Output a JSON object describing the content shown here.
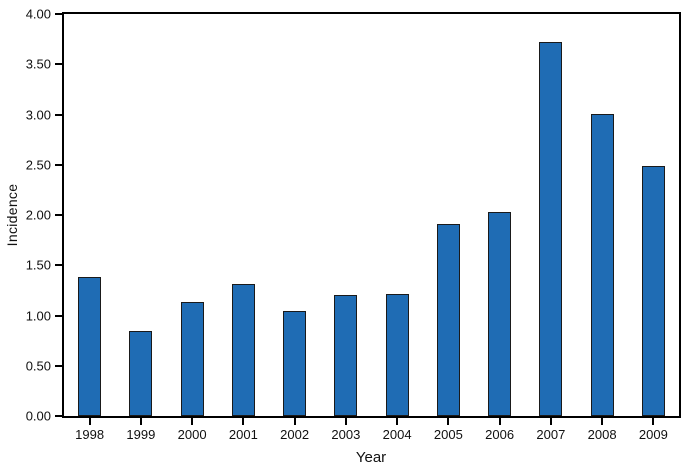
{
  "chart_data": {
    "type": "bar",
    "title": "",
    "xlabel": "Year",
    "ylabel": "Incidence",
    "categories": [
      "1998",
      "1999",
      "2000",
      "2001",
      "2002",
      "2003",
      "2004",
      "2005",
      "2006",
      "2007",
      "2008",
      "2009"
    ],
    "values": [
      1.38,
      0.85,
      1.13,
      1.31,
      1.04,
      1.2,
      1.21,
      1.91,
      2.03,
      3.72,
      3.01,
      2.49
    ],
    "ylim": [
      0,
      4
    ],
    "yticks": [
      0,
      0.5,
      1,
      1.5,
      2,
      2.5,
      3,
      3.5,
      4
    ],
    "ytick_labels": [
      "0.00",
      "0.50",
      "1.00",
      "1.50",
      "2.00",
      "2.50",
      "3.00",
      "3.50",
      "4.00"
    ],
    "grid": false,
    "legend": "none",
    "bar_color": "#1f6cb4",
    "bar_edge_color": "#1a1a1a",
    "axis_color": "#000000"
  }
}
